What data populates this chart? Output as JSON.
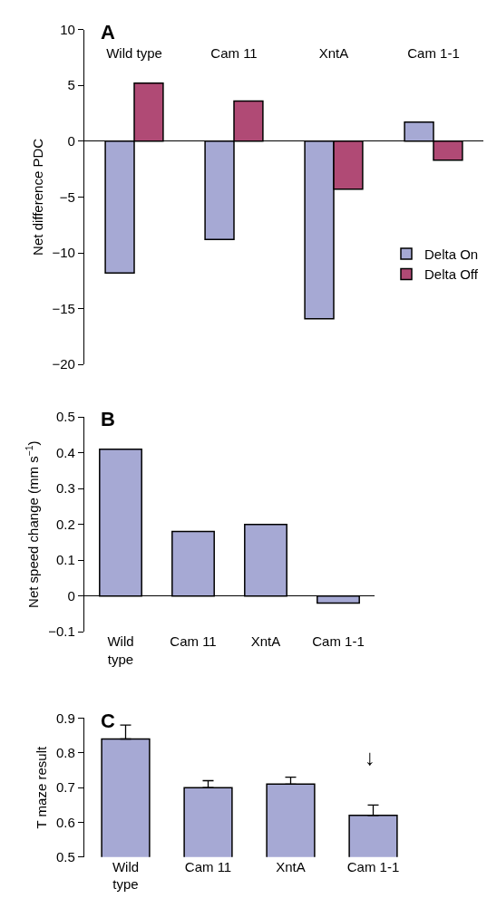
{
  "chart_data": [
    {
      "type": "bar",
      "title": "A",
      "ylabel": "Net difference PDC",
      "categories": [
        "Wild type",
        "Cam 11",
        "XntA",
        "Cam 1-1"
      ],
      "series": [
        {
          "name": "Delta On",
          "color": "#a6a9d4",
          "values": [
            -11.8,
            -8.8,
            -15.9,
            1.7
          ]
        },
        {
          "name": "Delta Off",
          "color": "#b04a75",
          "values": [
            5.2,
            3.6,
            -4.3,
            -1.7
          ]
        }
      ],
      "ylim": [
        -20,
        10
      ],
      "yticks": [
        {
          "value": -20,
          "label": "−20"
        },
        {
          "value": -15,
          "label": "−15"
        },
        {
          "value": -10,
          "label": "−10"
        },
        {
          "value": -5,
          "label": "−5"
        },
        0,
        5,
        10
      ],
      "legend": "right"
    },
    {
      "type": "bar",
      "title": "B",
      "ylabel": "Net speed change (mm s$^{−1}$)",
      "categories": [
        "Wild\ntype",
        "Cam 11",
        "XntA",
        "Cam 1-1"
      ],
      "series": [
        {
          "color": "#a6a9d4",
          "values": [
            0.41,
            0.18,
            0.2,
            -0.02
          ]
        }
      ],
      "ylim": [
        -0.1,
        0.5
      ],
      "yticks": [
        {
          "value": -0.1,
          "label": "−0.1"
        },
        0,
        0.1,
        0.2,
        0.3,
        0.4,
        0.5
      ]
    },
    {
      "type": "bar",
      "title": "C",
      "ylabel": "T maze result",
      "categories": [
        "Wild\ntype",
        "Cam 11",
        "XntA",
        "Cam 1-1"
      ],
      "series": [
        {
          "color": "#a6a9d4",
          "values": [
            0.84,
            0.7,
            0.71,
            0.62
          ],
          "errors": [
            [
              0.84,
              0.88
            ],
            [
              0.7,
              0.72
            ],
            [
              0.71,
              0.73
            ],
            [
              0.62,
              0.65
            ]
          ]
        }
      ],
      "ylim": [
        0.5,
        0.9
      ],
      "yticks": [
        0.5,
        0.6,
        0.7,
        0.8,
        0.9
      ],
      "annotations": [
        "↓"
      ]
    }
  ]
}
